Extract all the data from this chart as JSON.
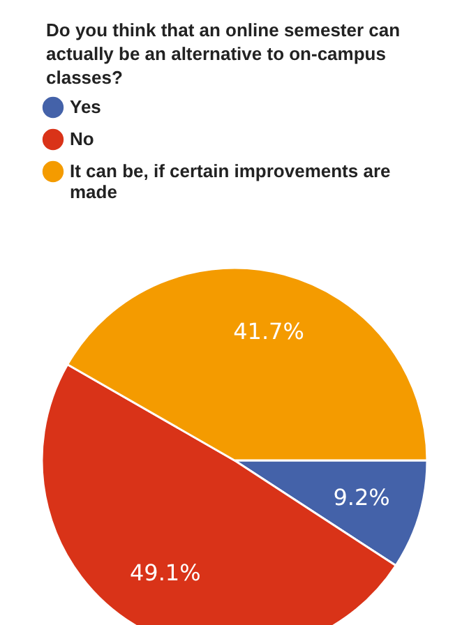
{
  "chart_data": {
    "type": "pie",
    "title": "Do you think that an online semester can actually be an alternative to on-campus classes?",
    "categories": [
      "Yes",
      "No",
      "It can be, if certain improvements are made"
    ],
    "values": [
      9.2,
      49.1,
      41.7
    ],
    "value_labels": [
      "9.2%",
      "49.1%",
      "41.7%"
    ],
    "colors": [
      "#4462a9",
      "#d93318",
      "#f49b00"
    ],
    "legend": "top left"
  }
}
